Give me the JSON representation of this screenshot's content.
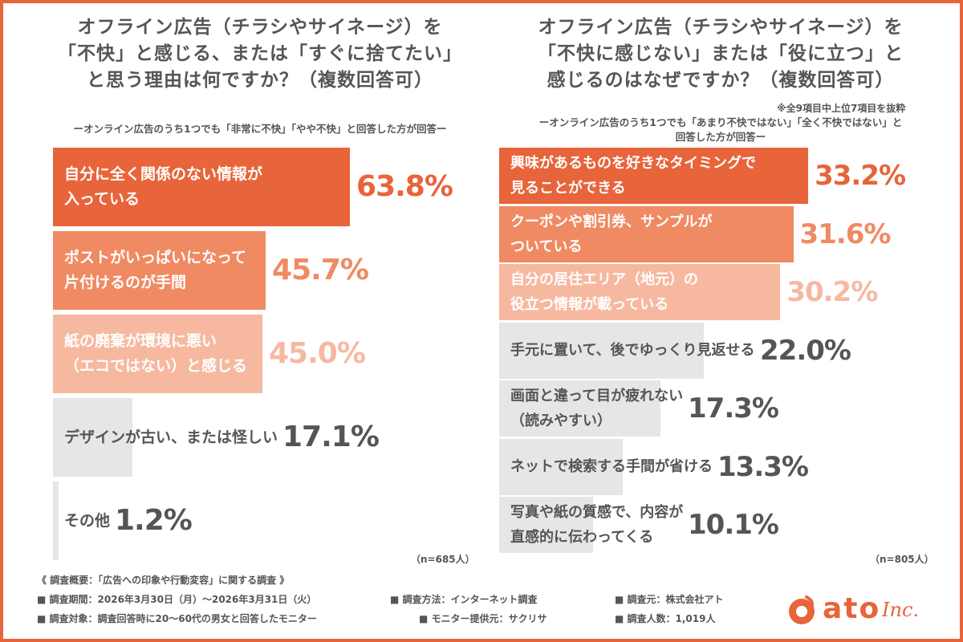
{
  "chart_data": [
    {
      "type": "bar",
      "orientation": "horizontal",
      "title": "オフライン広告（チラシやサイネージ）を\n「不快」と感じる、または「すぐに捨てたい」\nと思う理由は何ですか？（複数回答可）",
      "subtitle": "ーオンライン広告のうち1つでも「非常に不快」「やや不快」と回答した方が回答ー",
      "unit": "%",
      "n_label": "（n=685人）",
      "xlim": [
        0,
        100
      ],
      "categories": [
        "自分に全く関係のない情報が\n入っている",
        "ポストがいっぱいになって\n片付けるのが手間",
        "紙の廃棄が環境に悪い\n（エコではない）と感じる",
        "デザインが古い、または怪しい",
        "その他"
      ],
      "values": [
        63.8,
        45.7,
        45.0,
        17.1,
        1.2
      ],
      "value_labels": [
        "63.8%",
        "45.7%",
        "45.0%",
        "17.1%",
        "1.2%"
      ],
      "bar_colors": [
        "#e8643a",
        "#f08a62",
        "#f6b9a0",
        "#e6e5e8",
        "#e6e5e8"
      ],
      "label_colors": [
        "#ffffff",
        "#ffffff",
        "#ffffff",
        "#555555",
        "#555555"
      ],
      "value_colors": [
        "#e8643a",
        "#f08a62",
        "#f6b9a0",
        "#555555",
        "#555555"
      ]
    },
    {
      "type": "bar",
      "orientation": "horizontal",
      "title": "オフライン広告（チラシやサイネージ）を\n「不快に感じない」または「役に立つ」と\n感じるのはなぜですか？（複数回答可）",
      "note": "※全9項目中上位7項目を抜粋",
      "subtitle": "ーオンライン広告のうち1つでも「あまり不快ではない」「全く不快ではない」と\n回答した方が回答ー",
      "unit": "%",
      "n_label": "（n=805人）",
      "xlim": [
        0,
        50
      ],
      "categories": [
        "興味があるものを好きなタイミングで\n見ることができる",
        "クーポンや割引券、サンプルが\nついている",
        "自分の居住エリア（地元）の\n役立つ情報が載っている",
        "手元に置いて、後でゆっくり見返せる",
        "画面と違って目が疲れない\n（読みやすい）",
        "ネットで検索する手間が省ける",
        "写真や紙の質感で、内容が\n直感的に伝わってくる"
      ],
      "values": [
        33.2,
        31.6,
        30.2,
        22.0,
        17.3,
        13.3,
        10.1
      ],
      "value_labels": [
        "33.2%",
        "31.6%",
        "30.2%",
        "22.0%",
        "17.3%",
        "13.3%",
        "10.1%"
      ],
      "bar_colors": [
        "#e8643a",
        "#f08a62",
        "#f6b9a0",
        "#e6e5e8",
        "#e6e5e8",
        "#e6e5e8",
        "#e6e5e8"
      ],
      "label_colors": [
        "#ffffff",
        "#ffffff",
        "#ffffff",
        "#555555",
        "#555555",
        "#555555",
        "#555555"
      ],
      "value_colors": [
        "#e8643a",
        "#f08a62",
        "#f6b9a0",
        "#555555",
        "#555555",
        "#555555",
        "#555555"
      ]
    }
  ],
  "footer": {
    "heading": "《 調査概要：「広告への印象や行動変容」に関する調査 》",
    "period": "■ 調査期間：2026年3月30日（月）〜2026年3月31日（火）",
    "method": "■ 調査方法：インターネット調査",
    "sponsor": "■ 調査元：株式会社アト",
    "target": "■ 調査対象：調査回答時に20〜60代の男女と回答したモニター",
    "provider": "■ モニター提供元：サクリサ",
    "count": "■ 調査人数：1,019人"
  },
  "logo": {
    "name": "ato",
    "suffix": "Inc.",
    "color": "#e8643a",
    "icon": "ato-logo-icon"
  }
}
